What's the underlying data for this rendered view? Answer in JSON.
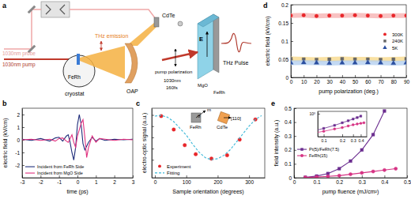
{
  "chart_data": [
    {
      "type": "diagram",
      "title": "a",
      "annotations": [
        "1030nm probe",
        "1030nm pump",
        "THz emission",
        "CdTe",
        "FeRh",
        "cryostat",
        "OAP",
        "pump polarization",
        "1030nm",
        "160fs",
        "MgO",
        "FeRh",
        "E",
        "THz Pulse"
      ]
    },
    {
      "type": "line",
      "title": "b",
      "xlabel": "time (ps)",
      "ylabel": "electric field (kV/cm)",
      "x": [
        -3,
        -2.5,
        -2,
        -1.5,
        -1.2,
        -1,
        -0.8,
        -0.6,
        -0.5,
        -0.4,
        -0.3,
        -0.2,
        -0.1,
        0,
        0.1,
        0.2,
        0.3,
        0.4,
        0.5,
        0.6,
        0.8,
        1,
        1.2,
        1.5,
        2,
        2.5,
        3
      ],
      "xlim": [
        -3,
        3
      ],
      "xticks": [
        -3,
        -2,
        -1,
        0,
        1,
        2,
        3
      ],
      "ylim": [
        -3,
        2.5
      ],
      "yticks": [
        -2,
        -1,
        0,
        1,
        2
      ],
      "legend": "lower left",
      "series": [
        {
          "name": "Incident from FeRh Side",
          "color": "#1f2d7a",
          "values": [
            0.05,
            -0.05,
            0.1,
            -0.1,
            0.15,
            0.2,
            -0.1,
            0.3,
            0.4,
            -0.2,
            -1.0,
            -1.6,
            -0.6,
            1.2,
            2.0,
            1.2,
            -0.3,
            -0.8,
            -0.5,
            -0.2,
            0.2,
            -0.1,
            0.1,
            -0.05,
            0.05,
            0,
            0.05
          ]
        },
        {
          "name": "Incident from MgO Side",
          "color": "#e0307e",
          "values": [
            0,
            0.05,
            -0.05,
            0.05,
            -0.1,
            0.1,
            0.15,
            -0.1,
            -0.2,
            0.1,
            0.4,
            -0.2,
            -0.6,
            0.3,
            0.8,
            1.3,
            1.6,
            0.2,
            -1.4,
            -0.6,
            0.3,
            -0.2,
            0.1,
            0.05,
            -0.05,
            0.05,
            0
          ]
        }
      ]
    },
    {
      "type": "scatter",
      "title": "c",
      "xlabel": "Sample orientation (degrees)",
      "ylabel": "electro-optic signal (a.u.)",
      "xlim": [
        -10,
        350
      ],
      "xticks": [
        0,
        100,
        200,
        300
      ],
      "ylim": [
        -1.8,
        1.3
      ],
      "yticks": [
        -1,
        -0.5,
        0,
        0.5,
        1
      ],
      "tick_labels": "x",
      "legend": "lower left",
      "annotations": [
        "FeRh",
        "CdTe",
        "θ",
        "m",
        "[110]"
      ],
      "series": [
        {
          "name": "Experiment",
          "type": "scatter",
          "marker": "circle",
          "color": "#e8262a",
          "x": [
            20,
            60,
            95,
            130,
            180,
            230,
            270,
            320
          ],
          "values": [
            0.95,
            0.35,
            -0.35,
            -0.75,
            -0.95,
            -0.8,
            -0.1,
            0.8
          ]
        },
        {
          "name": "Fitting",
          "type": "line",
          "line_style": "dashed",
          "color": "#3cb8d8",
          "x": [
            0,
            20,
            40,
            60,
            80,
            100,
            120,
            140,
            160,
            180,
            200,
            220,
            240,
            260,
            280,
            300,
            320,
            340
          ],
          "values": [
            0.95,
            0.98,
            0.9,
            0.7,
            0.4,
            0.1,
            -0.3,
            -0.65,
            -0.9,
            -1.0,
            -0.95,
            -0.8,
            -0.55,
            -0.2,
            0.15,
            0.5,
            0.8,
            0.97
          ]
        }
      ]
    },
    {
      "type": "scatter",
      "title": "d",
      "xlabel": "pump polarization (deg.)",
      "ylabel": "electric field (kV/cm)",
      "x": [
        0,
        10,
        20,
        30,
        40,
        50,
        60,
        70,
        80,
        90
      ],
      "xlim": [
        0,
        90
      ],
      "xticks": [
        0,
        10,
        20,
        30,
        40,
        50,
        60,
        70,
        80,
        90
      ],
      "ylim": [
        0,
        0.2
      ],
      "yticks": [
        0,
        0.05,
        0.1,
        0.15,
        0.2
      ],
      "legend": "center right",
      "series": [
        {
          "name": "300K",
          "marker": "circle",
          "color": "#e8262a",
          "values": [
            0.17,
            0.171,
            0.169,
            0.17,
            0.17,
            0.171,
            0.17,
            0.169,
            0.17,
            0.17
          ]
        },
        {
          "name": "240K",
          "marker": "square",
          "color": "#666666",
          "values": [
            0.051,
            0.05,
            0.049,
            0.05,
            0.051,
            0.05,
            0.05,
            0.049,
            0.05,
            0.051
          ]
        },
        {
          "name": "5K",
          "marker": "triangle",
          "color": "#2b4fa0",
          "values": [
            0.04,
            0.041,
            0.04,
            0.039,
            0.04,
            0.04,
            0.041,
            0.04,
            0.039,
            0.04
          ]
        }
      ]
    },
    {
      "type": "line",
      "title": "e",
      "xlabel": "pump fluence (mJ/cm²)",
      "ylabel": "field intensity (a.u.)",
      "xlim": [
        0,
        0.5
      ],
      "xticks": [
        0,
        0.1,
        0.2,
        0.3,
        0.4,
        0.5
      ],
      "ylim": [
        0,
        0.5
      ],
      "yticks": [
        0,
        0.1,
        0.2,
        0.3,
        0.4,
        0.5
      ],
      "legend": "center left",
      "series": [
        {
          "name": "Pt(5)/FeRh(7.5)",
          "marker": "square",
          "color": "#6b2d8f",
          "x": [
            0.05,
            0.1,
            0.15,
            0.2,
            0.25,
            0.3,
            0.35,
            0.4
          ],
          "values": [
            0.003,
            0.012,
            0.03,
            0.065,
            0.12,
            0.2,
            0.31,
            0.48
          ]
        },
        {
          "name": "FeRh(15)",
          "marker": "circle",
          "color": "#d63384",
          "x": [
            0.05,
            0.1,
            0.15,
            0.2,
            0.25,
            0.3,
            0.35,
            0.4,
            0.45
          ],
          "values": [
            0.002,
            0.005,
            0.01,
            0.015,
            0.025,
            0.035,
            0.045,
            0.055,
            0.065
          ]
        }
      ]
    },
    {
      "type": "line",
      "log": true,
      "xlim": [
        0.08,
        0.5
      ],
      "xticks": [
        0.1,
        0.2,
        0.3,
        0.4
      ],
      "ylim": [
        0.001,
        2
      ],
      "yticks": [
        {
          "value": 1,
          "label": "10⁰"
        }
      ],
      "series": [
        {
          "marker": "square",
          "color": "#6b2d8f",
          "x": [
            0.05,
            0.1,
            0.15,
            0.2,
            0.25,
            0.3,
            0.35,
            0.4
          ],
          "values": [
            0.003,
            0.012,
            0.03,
            0.065,
            0.12,
            0.2,
            0.31,
            0.48
          ]
        },
        {
          "marker": "circle",
          "color": "#d63384",
          "x": [
            0.05,
            0.1,
            0.15,
            0.2,
            0.25,
            0.3,
            0.35,
            0.4,
            0.45
          ],
          "values": [
            0.002,
            0.005,
            0.01,
            0.015,
            0.025,
            0.035,
            0.045,
            0.055,
            0.065
          ]
        }
      ]
    }
  ]
}
